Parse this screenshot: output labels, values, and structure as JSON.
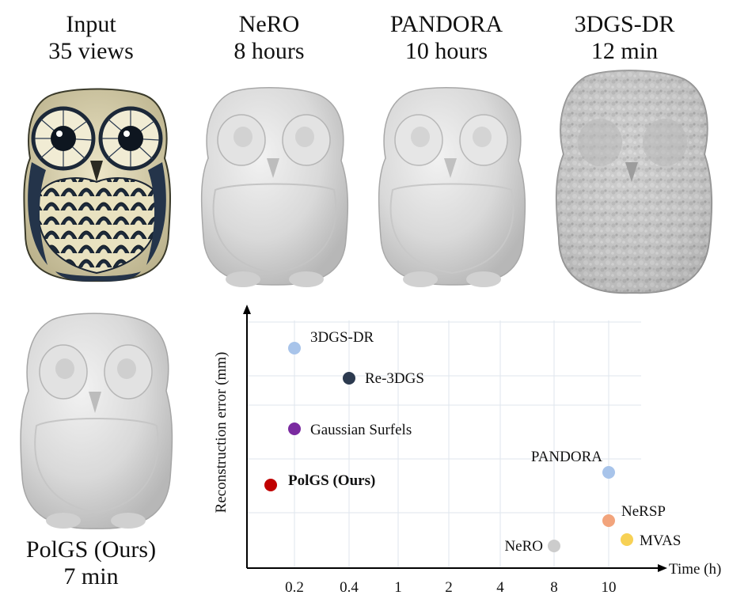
{
  "captions": {
    "input": {
      "line1": "Input",
      "line2": "35 views"
    },
    "nero": {
      "line1": "NeRO",
      "line2": "8 hours"
    },
    "pandora": {
      "line1": "PANDORA",
      "line2": "10 hours"
    },
    "dgsdr": {
      "line1": "3DGS-DR",
      "line2": "12 min"
    },
    "polgs": {
      "line1": "PolGS (Ours)",
      "line2": "7 min"
    }
  },
  "chart_data": {
    "type": "scatter",
    "xlabel": "Time (h)",
    "ylabel": "Reconstruction error (mm)",
    "x_ticks": [
      "0.2",
      "0.4",
      "1",
      "2",
      "4",
      "8",
      "10"
    ],
    "grid": true,
    "points": [
      {
        "label": "3DGS-DR",
        "x": "0.2",
        "y_rank": 1,
        "color": "#a8c4ea",
        "bold": false
      },
      {
        "label": "Re-3DGS",
        "x": "0.4",
        "y_rank": 2,
        "color": "#2c3a4f",
        "bold": false
      },
      {
        "label": "Gaussian Surfels",
        "x": "0.2",
        "y_rank": 3,
        "color": "#7a2aa0",
        "bold": false
      },
      {
        "label": "PANDORA",
        "x": "10",
        "y_rank": 4,
        "color": "#a8c4ea",
        "bold": false
      },
      {
        "label": "PolGS (Ours)",
        "x": "0.12",
        "y_rank": 5,
        "color": "#c00000",
        "bold": true
      },
      {
        "label": "NeRSP",
        "x": "10",
        "y_rank": 6,
        "color": "#f2a47c",
        "bold": false
      },
      {
        "label": "MVAS",
        "x": "10.4",
        "y_rank": 7,
        "color": "#f7d155",
        "bold": false
      },
      {
        "label": "NeRO",
        "x": "8",
        "y_rank": 8,
        "color": "#cccccc",
        "bold": false
      }
    ]
  }
}
